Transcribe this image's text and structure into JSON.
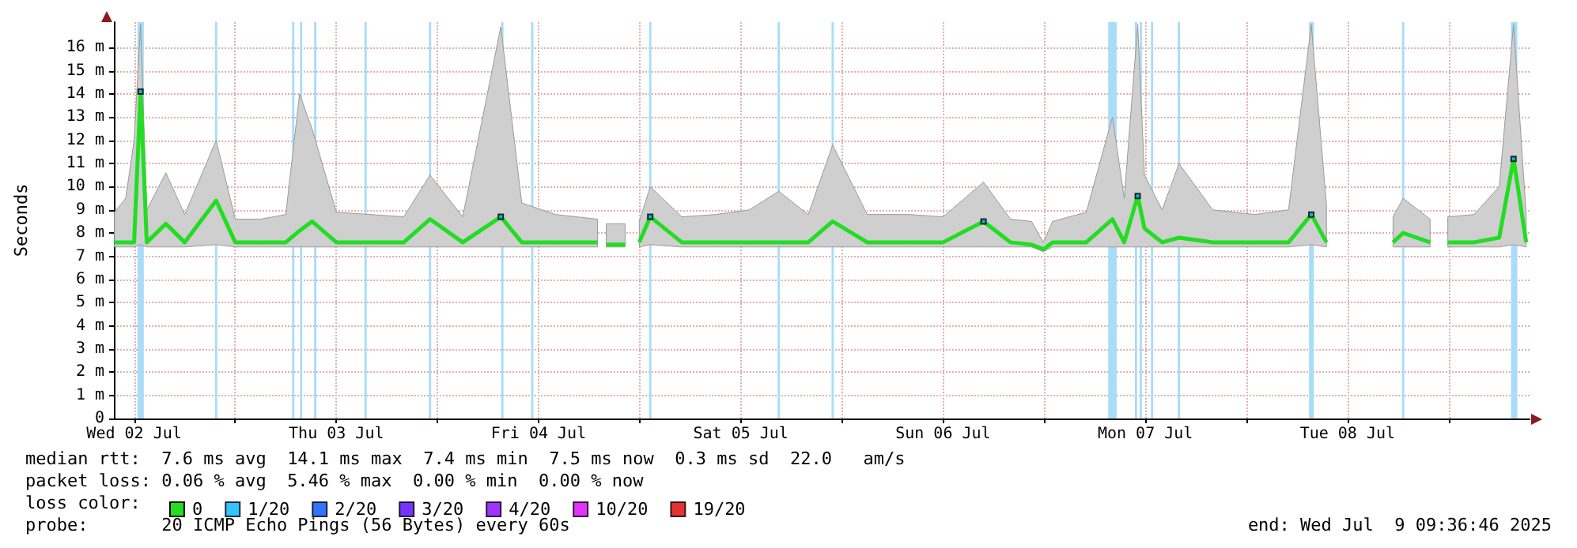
{
  "chart_data": {
    "type": "line",
    "ylabel": "Seconds",
    "legend_title": "loss color:",
    "legend": "bottom left",
    "grid": true,
    "xlim": [
      "2025-07-02T09:36",
      "2025-07-09T09:36"
    ],
    "xticks": [
      {
        "value": "2025-07-02T12:00",
        "label": "Wed 02 Jul"
      },
      {
        "value": "2025-07-03T00:00",
        "label": null
      },
      {
        "value": "2025-07-03T12:00",
        "label": "Thu 03 Jul"
      },
      {
        "value": "2025-07-04T00:00",
        "label": null
      },
      {
        "value": "2025-07-04T12:00",
        "label": "Fri 04 Jul"
      },
      {
        "value": "2025-07-05T00:00",
        "label": null
      },
      {
        "value": "2025-07-05T12:00",
        "label": "Sat 05 Jul"
      },
      {
        "value": "2025-07-06T00:00",
        "label": null
      },
      {
        "value": "2025-07-06T12:00",
        "label": "Sun 06 Jul"
      },
      {
        "value": "2025-07-07T00:00",
        "label": null
      },
      {
        "value": "2025-07-07T12:00",
        "label": "Mon 07 Jul"
      },
      {
        "value": "2025-07-08T00:00",
        "label": null
      },
      {
        "value": "2025-07-08T12:00",
        "label": "Tue 08 Jul"
      },
      {
        "value": "2025-07-09T00:00",
        "label": null
      }
    ],
    "ylim": [
      0,
      17.1
    ],
    "yticks": [
      0,
      {
        "value": 1,
        "label": "1 m"
      },
      {
        "value": 2,
        "label": "2 m"
      },
      {
        "value": 3,
        "label": "3 m"
      },
      {
        "value": 4,
        "label": "4 m"
      },
      {
        "value": 5,
        "label": "5 m"
      },
      {
        "value": 6,
        "label": "6 m"
      },
      {
        "value": 7,
        "label": "7 m"
      },
      {
        "value": 8,
        "label": "8 m"
      },
      {
        "value": 9,
        "label": "9 m"
      },
      {
        "value": 10,
        "label": "10 m"
      },
      {
        "value": 11,
        "label": "11 m"
      },
      {
        "value": 12,
        "label": "12 m"
      },
      {
        "value": 13,
        "label": "13 m"
      },
      {
        "value": 14,
        "label": "14 m"
      },
      {
        "value": 15,
        "label": "15 m"
      },
      {
        "value": 16,
        "label": "16 m"
      }
    ],
    "series": [
      {
        "name": "0",
        "color": "#22dd22",
        "x": [
          "2025-07-02T09:40",
          "2025-07-02T11:00",
          "2025-07-02T12:00",
          "2025-07-02T12:46",
          "2025-07-02T13:30",
          "2025-07-02T15:46",
          "2025-07-02T18:00",
          "2025-07-02T21:44",
          "2025-07-03T00:00",
          "2025-07-03T03:00",
          "2025-07-03T06:00",
          "2025-07-03T07:38",
          "2025-07-03T09:07",
          "2025-07-03T12:00",
          "2025-07-03T16:00",
          "2025-07-03T20:00",
          "2025-07-03T23:07",
          "2025-07-04T03:00",
          "2025-07-04T07:31",
          "2025-07-04T10:00",
          "2025-07-04T14:00",
          "2025-07-04T19:00",
          "2025-07-04T19:30",
          "2025-07-04T20:02",
          "2025-07-04T22:16",
          "2025-07-04T23:00",
          "2025-07-04T23:57",
          "2025-07-05T01:15",
          "2025-07-05T05:00",
          "2025-07-05T09:00",
          "2025-07-05T13:00",
          "2025-07-05T16:30",
          "2025-07-05T20:00",
          "2025-07-05T22:54",
          "2025-07-06T03:00",
          "2025-07-06T08:00",
          "2025-07-06T12:00",
          "2025-07-06T16:48",
          "2025-07-06T20:00",
          "2025-07-06T22:30",
          "2025-07-06T23:54",
          "2025-07-07T01:00",
          "2025-07-07T05:00",
          "2025-07-07T08:06",
          "2025-07-07T09:30",
          "2025-07-07T11:06",
          "2025-07-07T11:54",
          "2025-07-07T14:00",
          "2025-07-07T16:00",
          "2025-07-07T20:00",
          "2025-07-08T01:00",
          "2025-07-08T05:00",
          "2025-07-08T07:42",
          "2025-07-08T09:30",
          "2025-07-08T09:54",
          "2025-07-08T17:24",
          "2025-07-08T18:36",
          "2025-07-08T21:48",
          "2025-07-08T22:50",
          "2025-07-08T23:54",
          "2025-07-09T03:00",
          "2025-07-09T06:00",
          "2025-07-09T07:42",
          "2025-07-09T09:12"
        ],
        "values": [
          7.6,
          7.6,
          7.6,
          14.1,
          7.6,
          8.4,
          7.6,
          9.4,
          7.6,
          7.6,
          7.6,
          8.1,
          8.5,
          7.6,
          7.6,
          7.6,
          8.6,
          7.6,
          8.7,
          7.6,
          7.6,
          7.6,
          null,
          7.5,
          7.5,
          null,
          7.6,
          8.7,
          7.6,
          7.6,
          7.6,
          7.6,
          7.6,
          8.5,
          7.6,
          7.6,
          7.6,
          8.5,
          7.6,
          7.5,
          7.3,
          7.6,
          7.6,
          8.6,
          7.6,
          9.6,
          8.2,
          7.6,
          7.8,
          7.6,
          7.6,
          7.6,
          8.8,
          7.6,
          null,
          7.6,
          8.0,
          7.6,
          null,
          7.6,
          7.6,
          7.8,
          11.2,
          7.6
        ],
        "lower": [
          7.4,
          7.4,
          7.4,
          7.5,
          7.4,
          7.4,
          7.4,
          7.5,
          7.4,
          7.4,
          7.4,
          7.4,
          7.4,
          7.4,
          7.4,
          7.4,
          7.4,
          7.4,
          7.4,
          7.4,
          7.4,
          7.4,
          null,
          7.4,
          7.4,
          null,
          7.4,
          7.5,
          7.4,
          7.4,
          7.4,
          7.4,
          7.4,
          7.4,
          7.4,
          7.4,
          7.4,
          7.4,
          7.4,
          7.4,
          7.2,
          7.4,
          7.4,
          7.4,
          7.4,
          7.4,
          7.4,
          7.4,
          7.4,
          7.4,
          7.4,
          7.4,
          7.5,
          7.4,
          null,
          7.4,
          7.4,
          7.4,
          null,
          7.4,
          7.4,
          7.4,
          7.5,
          7.4
        ],
        "upper": [
          8.9,
          9.5,
          12.0,
          17.0,
          9.0,
          10.6,
          8.8,
          12.0,
          8.6,
          8.6,
          8.8,
          14.0,
          12.5,
          8.9,
          8.8,
          8.7,
          10.5,
          8.7,
          16.9,
          9.3,
          8.8,
          8.6,
          null,
          8.4,
          8.4,
          null,
          8.5,
          10.0,
          8.7,
          8.8,
          9.0,
          9.8,
          8.8,
          11.8,
          8.8,
          8.8,
          8.7,
          10.2,
          8.6,
          8.5,
          7.6,
          8.5,
          8.9,
          13.0,
          9.5,
          17.0,
          10.5,
          9.0,
          11.0,
          9.0,
          8.8,
          9.0,
          17.0,
          9.2,
          null,
          8.7,
          9.5,
          8.6,
          null,
          8.7,
          8.8,
          10.0,
          17.0,
          8.8
        ]
      },
      {
        "name": "1/20",
        "color": "#00b4ff",
        "type": "scatter",
        "marker": "square",
        "x": [
          "2025-07-02T12:46",
          "2025-07-04T07:31",
          "2025-07-05T01:15",
          "2025-07-06T16:48",
          "2025-07-07T11:06",
          "2025-07-08T07:42",
          "2025-07-09T07:42"
        ],
        "values": [
          14.1,
          8.7,
          8.7,
          8.5,
          9.6,
          8.8,
          11.2
        ]
      },
      {
        "name": "2/20",
        "color": "#0050ff",
        "type": "scatter",
        "marker": "square"
      },
      {
        "name": "3/20",
        "color": "#5500ff",
        "type": "scatter",
        "marker": "square"
      },
      {
        "name": "4/20",
        "color": "#8800ff",
        "type": "scatter",
        "marker": "square"
      },
      {
        "name": "10/20",
        "color": "#dd00ff",
        "type": "scatter",
        "marker": "square"
      },
      {
        "name": "19/20",
        "color": "#dd0000",
        "type": "scatter",
        "marker": "square"
      }
    ],
    "bands": [
      {
        "axis": "x",
        "from": "2025-07-02T12:24",
        "to": "2025-07-02T13:09",
        "color": "#a8dcf8"
      },
      {
        "axis": "x",
        "from": "2025-07-02T21:36",
        "to": "2025-07-02T21:52",
        "color": "#a8dcf8"
      },
      {
        "axis": "x",
        "from": "2025-07-03T06:45",
        "to": "2025-07-03T07:01",
        "color": "#a8dcf8"
      },
      {
        "axis": "x",
        "from": "2025-07-03T07:41",
        "to": "2025-07-03T07:57",
        "color": "#a8dcf8"
      },
      {
        "axis": "x",
        "from": "2025-07-03T09:22",
        "to": "2025-07-03T09:38",
        "color": "#a8dcf8"
      },
      {
        "axis": "x",
        "from": "2025-07-03T15:20",
        "to": "2025-07-03T15:36",
        "color": "#a8dcf8"
      },
      {
        "axis": "x",
        "from": "2025-07-03T22:59",
        "to": "2025-07-03T23:15",
        "color": "#a8dcf8"
      },
      {
        "axis": "x",
        "from": "2025-07-04T07:34",
        "to": "2025-07-04T07:50",
        "color": "#a8dcf8"
      },
      {
        "axis": "x",
        "from": "2025-07-04T11:07",
        "to": "2025-07-04T11:23",
        "color": "#a8dcf8"
      },
      {
        "axis": "x",
        "from": "2025-07-05T01:07",
        "to": "2025-07-05T01:23",
        "color": "#a8dcf8"
      },
      {
        "axis": "x",
        "from": "2025-07-05T16:22",
        "to": "2025-07-05T16:38",
        "color": "#a8dcf8"
      },
      {
        "axis": "x",
        "from": "2025-07-05T22:46",
        "to": "2025-07-05T23:02",
        "color": "#a8dcf8"
      },
      {
        "axis": "x",
        "from": "2025-07-07T07:36",
        "to": "2025-07-07T08:36",
        "color": "#a8dcf8"
      },
      {
        "axis": "x",
        "from": "2025-07-07T10:46",
        "to": "2025-07-07T11:02",
        "color": "#a8dcf8"
      },
      {
        "axis": "x",
        "from": "2025-07-07T11:20",
        "to": "2025-07-07T11:36",
        "color": "#a8dcf8"
      },
      {
        "axis": "x",
        "from": "2025-07-07T12:40",
        "to": "2025-07-07T12:56",
        "color": "#a8dcf8"
      },
      {
        "axis": "x",
        "from": "2025-07-07T15:51",
        "to": "2025-07-07T16:07",
        "color": "#a8dcf8"
      },
      {
        "axis": "x",
        "from": "2025-07-08T07:26",
        "to": "2025-07-08T08:00",
        "color": "#a8dcf8"
      },
      {
        "axis": "x",
        "from": "2025-07-08T18:28",
        "to": "2025-07-08T18:44",
        "color": "#a8dcf8"
      },
      {
        "axis": "x",
        "from": "2025-07-09T07:24",
        "to": "2025-07-09T08:09",
        "color": "#a8dcf8"
      }
    ],
    "annotations": [
      "median rtt:  7.6 ms avg  14.1 ms max  7.4 ms min  7.5 ms now  0.3 ms sd  22.0   am/s",
      "packet loss: 0.06 % avg  5.46 % max  0.00 % min  0.00 % now",
      "probe:       20 ICMP Echo Pings (56 Bytes) every 60s",
      "end: Wed Jul  9 09:36:46 2025"
    ]
  }
}
